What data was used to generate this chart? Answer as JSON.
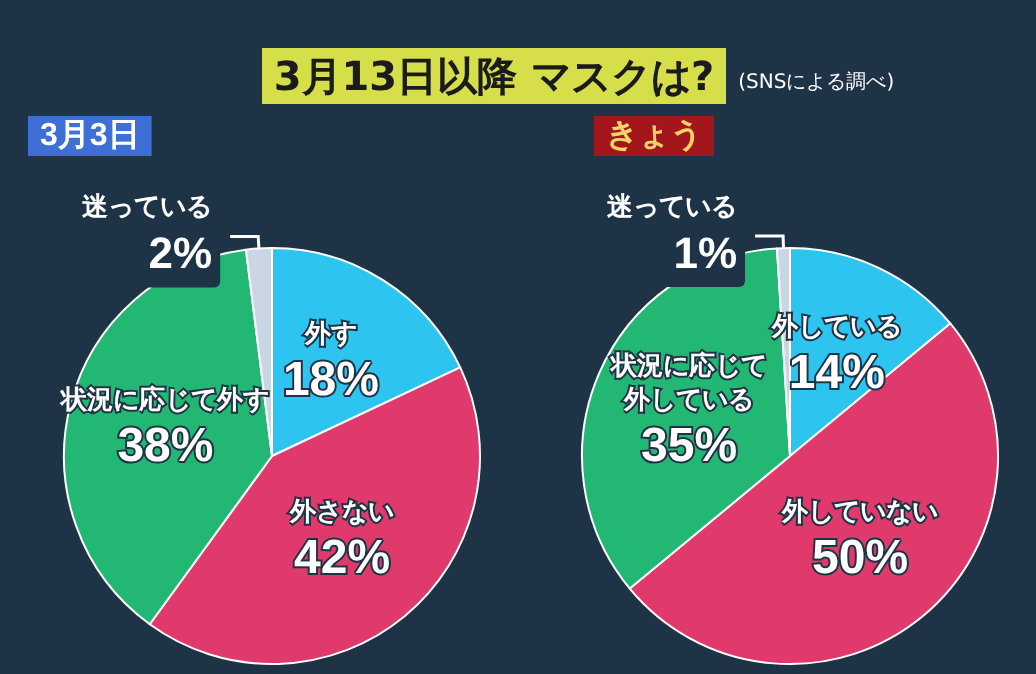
{
  "chart_data": [
    {
      "type": "pie",
      "title": "3月3日",
      "annotations": [
        "3月13日以降 マスクは?",
        "(SNSによる調べ)"
      ],
      "categories": [
        "外す",
        "外さない",
        "状況に応じて外す",
        "迷っている"
      ],
      "values": [
        18,
        42,
        38,
        2
      ],
      "value_labels": [
        "18%",
        "42%",
        "38%",
        "2%"
      ],
      "colors": [
        "#2ec4f0",
        "#e03a6c",
        "#22b873",
        "#c9d6e6"
      ],
      "legend": false
    },
    {
      "type": "pie",
      "title": "きょう",
      "categories": [
        "外している",
        "外していない",
        "状況に応じて外している",
        "迷っている"
      ],
      "values": [
        14,
        50,
        35,
        1
      ],
      "value_labels": [
        "14%",
        "50%",
        "35%",
        "1%"
      ],
      "colors": [
        "#2ec4f0",
        "#e03a6c",
        "#22b873",
        "#c9d6e6"
      ],
      "legend": false
    }
  ]
}
